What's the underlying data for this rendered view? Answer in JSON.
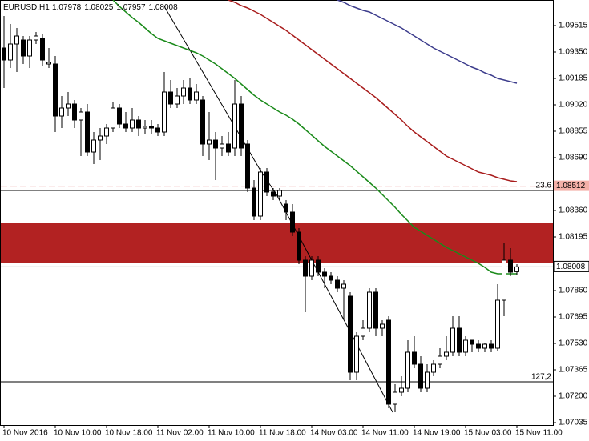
{
  "chart_data": {
    "type": "candlestick",
    "symbol": "EURUSD,H1",
    "categories": [
      "10 Nov 2016",
      null,
      null,
      null,
      null,
      null,
      null,
      null,
      "10 Nov 10:00",
      null,
      null,
      null,
      null,
      null,
      null,
      null,
      "10 Nov 18:00",
      null,
      null,
      null,
      null,
      null,
      null,
      null,
      "11 Nov 02:00",
      null,
      null,
      null,
      null,
      null,
      null,
      null,
      "11 Nov 10:00",
      null,
      null,
      null,
      null,
      null,
      null,
      null,
      "11 Nov 18:00",
      null,
      null,
      null,
      null,
      null,
      null,
      null,
      "14 Nov 03:00",
      null,
      null,
      null,
      null,
      null,
      null,
      null,
      "14 Nov 11:00",
      null,
      null,
      null,
      null,
      null,
      null,
      null,
      "14 Nov 19:00",
      null,
      null,
      null,
      null,
      null,
      null,
      null,
      "15 Nov 03:00",
      null,
      null,
      null,
      null,
      null,
      null,
      null,
      "15 Nov 11:00"
    ],
    "open": [
      1.09375,
      1.093,
      1.094,
      1.09425,
      1.09325,
      1.09425,
      1.09435,
      1.09275,
      1.09275,
      1.0895,
      1.09,
      1.09025,
      1.08925,
      1.08975,
      1.08725,
      1.088,
      1.08825,
      1.08875,
      1.09,
      1.089,
      1.08875,
      1.08925,
      1.08875,
      1.08885,
      1.08875,
      1.0885,
      1.091,
      1.09025,
      1.09075,
      1.09125,
      1.0905,
      1.0905,
      1.08775,
      1.088,
      1.0875,
      1.08775,
      1.0875,
      1.09025,
      1.08775,
      1.085,
      1.08325,
      1.086,
      1.08475,
      1.0845,
      1.084,
      1.0835,
      1.08225,
      1.0805,
      1.0795,
      1.0805,
      1.07975,
      1.0795,
      1.07925,
      1.07875,
      1.07825,
      1.0735,
      1.07575,
      1.07625,
      1.0785,
      1.07625,
      1.07675,
      1.0715,
      1.07225,
      1.0725,
      1.07475,
      1.074,
      1.0725,
      1.0735,
      1.074,
      1.0745,
      1.07475,
      1.07625,
      1.07475,
      1.0755,
      1.07525,
      1.075,
      1.07525,
      1.075,
      1.078,
      1.0805,
      1.07978
    ],
    "high": [
      1.09575,
      1.09525,
      1.095,
      1.0945,
      1.0945,
      1.09475,
      1.09465,
      1.09375,
      1.09325,
      1.09075,
      1.091,
      1.0905,
      1.09,
      1.09025,
      1.0885,
      1.08875,
      1.089,
      1.09035,
      1.09025,
      1.08975,
      1.09,
      1.0895,
      1.08925,
      1.08925,
      1.089,
      1.09225,
      1.09175,
      1.09125,
      1.09175,
      1.09185,
      1.0915,
      1.09075,
      1.08975,
      1.0885,
      1.08825,
      1.0885,
      1.09175,
      1.09075,
      1.088,
      1.0855,
      1.08625,
      1.08625,
      1.085,
      1.085,
      1.08425,
      1.084,
      1.0825,
      1.08075,
      1.08075,
      1.08075,
      1.08,
      1.07975,
      1.0795,
      1.07925,
      1.0785,
      1.076,
      1.07675,
      1.07875,
      1.07875,
      1.07675,
      1.077,
      1.07275,
      1.07325,
      1.0755,
      1.07575,
      1.0745,
      1.074,
      1.07425,
      1.075,
      1.07575,
      1.077,
      1.077,
      1.07575,
      1.0755,
      1.0755,
      1.07535,
      1.0755,
      1.079,
      1.0816,
      1.08125,
      1.08025
    ],
    "low": [
      1.09125,
      1.0925,
      1.09225,
      1.09275,
      1.0925,
      1.094,
      1.09265,
      1.0925,
      1.0885,
      1.08875,
      1.0895,
      1.08875,
      1.087,
      1.087,
      1.0865,
      1.08675,
      1.08775,
      1.0885,
      1.08875,
      1.0885,
      1.0885,
      1.08825,
      1.08835,
      1.08835,
      1.08825,
      1.08825,
      1.09,
      1.09,
      1.09025,
      1.09025,
      1.09025,
      1.087,
      1.08675,
      1.0855,
      1.087,
      1.087,
      1.087,
      1.087,
      1.08475,
      1.083,
      1.083,
      1.0845,
      1.08425,
      1.08425,
      1.083,
      1.082,
      1.08025,
      1.07725,
      1.07925,
      1.0795,
      1.07875,
      1.079,
      1.0785,
      1.07675,
      1.073,
      1.073,
      1.0755,
      1.076,
      1.07575,
      1.07575,
      1.07125,
      1.071,
      1.072,
      1.07225,
      1.07375,
      1.07225,
      1.07225,
      1.07325,
      1.07375,
      1.07425,
      1.0745,
      1.0745,
      1.0745,
      1.07475,
      1.07475,
      1.07475,
      1.07475,
      1.07485,
      1.077,
      1.0795,
      1.07957
    ],
    "close": [
      1.093,
      1.094,
      1.0945,
      1.09325,
      1.09425,
      1.0945,
      1.093,
      1.09285,
      1.0895,
      1.09,
      1.09025,
      1.08925,
      1.08975,
      1.08725,
      1.088,
      1.08825,
      1.08875,
      1.09,
      1.089,
      1.08875,
      1.08925,
      1.08875,
      1.08885,
      1.08875,
      1.0885,
      1.091,
      1.09025,
      1.09075,
      1.09125,
      1.0905,
      1.091,
      1.08775,
      1.088,
      1.0875,
      1.08775,
      1.08725,
      1.09025,
      1.0875,
      1.085,
      1.08325,
      1.086,
      1.08475,
      1.0845,
      1.08485,
      1.0835,
      1.08225,
      1.0805,
      1.0795,
      1.0805,
      1.07975,
      1.0795,
      1.07925,
      1.07875,
      1.079,
      1.0735,
      1.07575,
      1.07625,
      1.0785,
      1.07625,
      1.0765,
      1.0715,
      1.07225,
      1.0725,
      1.07475,
      1.074,
      1.0725,
      1.0735,
      1.074,
      1.0745,
      1.07475,
      1.07625,
      1.07475,
      1.0755,
      1.07525,
      1.075,
      1.07525,
      1.075,
      1.078,
      1.0805,
      1.07975,
      1.08008
    ],
    "up_color": "#ffffff",
    "down_color": "#000000",
    "lines": [
      {
        "color": "#1a8a1a",
        "values": [
          null,
          null,
          null,
          null,
          null,
          null,
          null,
          null,
          null,
          null,
          null,
          null,
          null,
          null,
          null,
          null,
          null,
          1.09675,
          1.09635,
          1.096,
          1.09565,
          1.09535,
          1.095,
          1.09465,
          1.09435,
          1.0942,
          1.09405,
          1.0939,
          1.09375,
          1.0936,
          1.09345,
          1.09325,
          1.093,
          1.09275,
          1.09245,
          1.09215,
          1.09185,
          1.0915,
          1.09115,
          1.0908,
          1.0905,
          1.09025,
          1.09,
          1.08975,
          1.08955,
          1.0893,
          1.089,
          1.08865,
          1.0883,
          1.08795,
          1.0876,
          1.0873,
          1.087,
          1.0867,
          1.0864,
          1.08605,
          1.0857,
          1.08535,
          1.085,
          1.0846,
          1.0842,
          1.0838,
          1.08335,
          1.08295,
          1.08255,
          1.0823,
          1.08205,
          1.0818,
          1.08155,
          1.0813,
          1.0811,
          1.0809,
          1.0807,
          1.0805,
          1.0803,
          1.08005,
          1.07975,
          1.07965,
          1.07965,
          1.07965,
          1.07965
        ]
      },
      {
        "color": "#a81c1c",
        "values": [
          null,
          null,
          null,
          null,
          null,
          null,
          null,
          null,
          null,
          null,
          null,
          null,
          null,
          null,
          null,
          null,
          null,
          null,
          null,
          null,
          null,
          null,
          null,
          null,
          null,
          null,
          null,
          null,
          null,
          null,
          null,
          null,
          null,
          null,
          null,
          1.09675,
          1.0966,
          1.0964,
          1.09625,
          1.09605,
          1.09585,
          1.0956,
          1.09535,
          1.0951,
          1.09485,
          1.09455,
          1.09425,
          1.09395,
          1.09365,
          1.09335,
          1.09305,
          1.09275,
          1.09245,
          1.09215,
          1.09185,
          1.09155,
          1.09125,
          1.09095,
          1.09065,
          1.0903,
          1.08995,
          1.0896,
          1.08925,
          1.08885,
          1.0885,
          1.0882,
          1.0879,
          1.0876,
          1.0873,
          1.087,
          1.0868,
          1.0866,
          1.0864,
          1.0862,
          1.086,
          1.0859,
          1.0858,
          1.08565,
          1.08555,
          1.08545,
          1.0854
        ]
      },
      {
        "color": "#3c3c8c",
        "values": [
          null,
          null,
          null,
          null,
          null,
          null,
          null,
          null,
          null,
          null,
          null,
          null,
          null,
          null,
          null,
          null,
          null,
          null,
          null,
          null,
          null,
          null,
          null,
          null,
          null,
          null,
          null,
          null,
          null,
          null,
          null,
          null,
          null,
          null,
          null,
          null,
          null,
          null,
          null,
          null,
          null,
          null,
          null,
          null,
          null,
          null,
          null,
          null,
          null,
          null,
          null,
          null,
          1.09675,
          1.0966,
          1.0964,
          1.09625,
          1.0961,
          1.096,
          1.0958,
          1.0956,
          1.0954,
          1.0952,
          1.095,
          1.09475,
          1.0945,
          1.09425,
          1.094,
          1.09375,
          1.09355,
          1.09335,
          1.09315,
          1.09295,
          1.09275,
          1.09255,
          1.0924,
          1.0922,
          1.09205,
          1.09185,
          1.09175,
          1.09165,
          1.09155
        ]
      }
    ],
    "levels": [
      {
        "label": "23.6",
        "value": 1.08485
      },
      {
        "label": "127,2",
        "value": 1.0729
      }
    ],
    "alert_line": {
      "value": 1.08512,
      "color": "#e06060"
    },
    "zone": {
      "top": 1.08285,
      "bottom": 1.08035,
      "color": "#b22222"
    },
    "ylim": [
      1.0702,
      1.09675
    ],
    "yticks": [
      1.09515,
      {
        "value": 1.0935,
        "label": "1.09350"
      },
      1.09185,
      {
        "value": 1.0902,
        "label": "1.09020"
      },
      1.08855,
      {
        "value": 1.0869,
        "label": "1.08690"
      },
      {
        "value": 1.0836,
        "label": "1.08360"
      },
      1.08195,
      {
        "value": 1.0786,
        "label": "1.07860"
      },
      1.07695,
      {
        "value": 1.0753,
        "label": "1.07530"
      },
      1.07365,
      {
        "value": 1.072,
        "label": "1.07200"
      },
      1.07035
    ]
  }
}
